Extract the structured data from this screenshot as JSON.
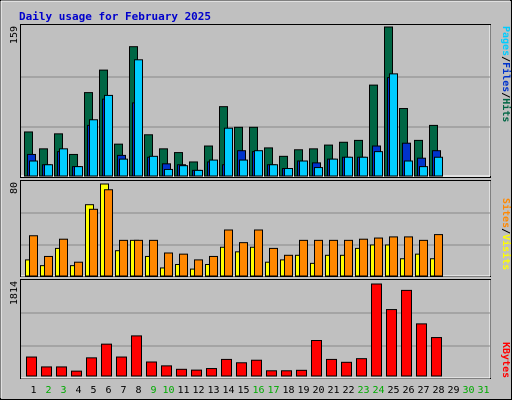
{
  "title": "Daily usage for February 2025",
  "colors": {
    "hits": "#006644",
    "files": "#0033cc",
    "pages": "#00ccff",
    "visits": "#ffff00",
    "sites": "#ff8800",
    "kbytes": "#ff0000",
    "weekday": "#000000",
    "weekend": "#00aa00"
  },
  "legend": {
    "pages": "Pages",
    "files": "Files",
    "hits": "Hits",
    "sep1": "/",
    "sep2": "/",
    "sites": "Sites",
    "visits": "Visits",
    "sep3": "/",
    "kbytes": "KBytes"
  },
  "chart_data": [
    {
      "type": "bar",
      "panel": "hits-files-pages",
      "ymax_label": "159",
      "ylim": [
        0,
        159
      ],
      "x": [
        1,
        2,
        3,
        4,
        5,
        6,
        7,
        8,
        9,
        10,
        11,
        12,
        13,
        14,
        15,
        16,
        17,
        18,
        19,
        20,
        21,
        22,
        23,
        24,
        25,
        26,
        27,
        28
      ],
      "series": [
        {
          "name": "Hits",
          "values": [
            47,
            29,
            45,
            23,
            89,
            113,
            34,
            138,
            44,
            29,
            25,
            15,
            32,
            74,
            52,
            52,
            30,
            21,
            28,
            29,
            33,
            36,
            38,
            97,
            159,
            72,
            38,
            54
          ]
        },
        {
          "name": "Files",
          "values": [
            23,
            12,
            26,
            10,
            54,
            82,
            22,
            78,
            20,
            13,
            12,
            6,
            15,
            12,
            27,
            26,
            12,
            8,
            16,
            14,
            18,
            20,
            20,
            32,
            105,
            35,
            19,
            27
          ]
        },
        {
          "name": "Pages",
          "values": [
            16,
            12,
            29,
            10,
            60,
            86,
            18,
            124,
            21,
            7,
            11,
            6,
            17,
            51,
            17,
            27,
            12,
            8,
            16,
            9,
            18,
            20,
            20,
            26,
            109,
            16,
            10,
            20
          ]
        }
      ]
    },
    {
      "type": "bar",
      "panel": "visits-sites",
      "ymax_label": "80",
      "ylim": [
        0,
        80
      ],
      "x": [
        1,
        2,
        3,
        4,
        5,
        6,
        7,
        8,
        9,
        10,
        11,
        12,
        13,
        14,
        15,
        16,
        17,
        18,
        19,
        20,
        21,
        22,
        23,
        24,
        25,
        26,
        27,
        28
      ],
      "series": [
        {
          "name": "Visits",
          "values": [
            14,
            9,
            24,
            9,
            62,
            80,
            22,
            31,
            17,
            7,
            10,
            6,
            10,
            25,
            21,
            25,
            12,
            14,
            18,
            11,
            18,
            18,
            24,
            27,
            27,
            15,
            19,
            15
          ]
        },
        {
          "name": "Sites",
          "values": [
            35,
            17,
            32,
            12,
            58,
            75,
            31,
            31,
            31,
            20,
            19,
            14,
            17,
            40,
            29,
            40,
            24,
            18,
            31,
            31,
            31,
            31,
            32,
            33,
            34,
            34,
            31,
            36
          ]
        }
      ]
    },
    {
      "type": "bar",
      "panel": "kbytes",
      "ymax_label": "1814",
      "ylim": [
        0,
        1814
      ],
      "x": [
        1,
        2,
        3,
        4,
        5,
        6,
        7,
        8,
        9,
        10,
        11,
        12,
        13,
        14,
        15,
        16,
        17,
        18,
        19,
        20,
        21,
        22,
        23,
        24,
        25,
        26,
        27,
        28
      ],
      "series": [
        {
          "name": "KBytes",
          "values": [
            374,
            179,
            179,
            96,
            358,
            628,
            374,
            791,
            276,
            200,
            132,
            116,
            147,
            327,
            261,
            311,
            103,
            103,
            112,
            700,
            327,
            270,
            342,
            1814,
            1310,
            1688,
            1028,
            758
          ]
        }
      ]
    }
  ],
  "days": [
    "1",
    "2",
    "3",
    "4",
    "5",
    "6",
    "7",
    "8",
    "9",
    "10",
    "11",
    "12",
    "13",
    "14",
    "15",
    "16",
    "17",
    "18",
    "19",
    "20",
    "21",
    "22",
    "23",
    "24",
    "25",
    "26",
    "27",
    "28",
    "29",
    "30",
    "31"
  ],
  "weekend_days": [
    1,
    2,
    8,
    9,
    15,
    16,
    22,
    23,
    29,
    30
  ]
}
